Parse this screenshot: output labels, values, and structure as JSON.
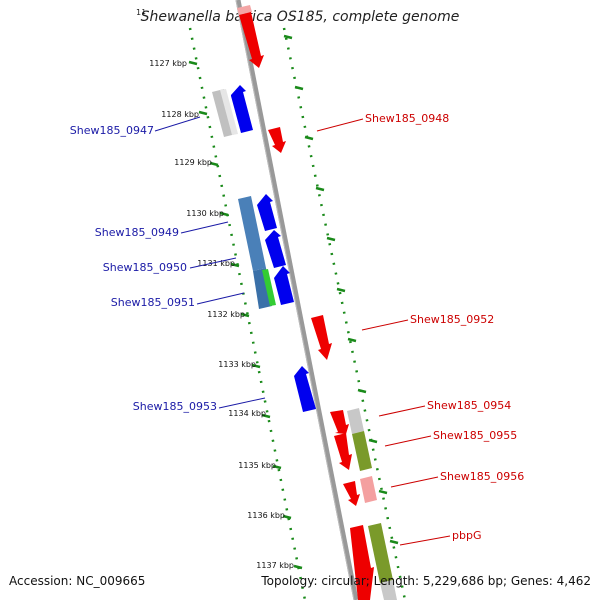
{
  "title": "Shewanella baltica OS185, complete genome",
  "title_prefix": "1",
  "footer": {
    "accession": "Accession: NC_009665",
    "summary": "Topology: circular; Length: 5,229,686 bp; Genes: 4,462"
  },
  "ticks": [
    "1127 kbp",
    "1128 kbp",
    "1129 kbp",
    "1130 kbp",
    "1131 kbp",
    "1132 kbp",
    "1133 kbp",
    "1134 kbp",
    "1135 kbp",
    "1136 kbp",
    "1137 kbp"
  ],
  "labels_left": [
    "Shew185_0947",
    "Shew185_0949",
    "Shew185_0950",
    "Shew185_0951",
    "Shew185_0953"
  ],
  "labels_right": [
    "Shew185_0948",
    "Shew185_0952",
    "Shew185_0954",
    "Shew185_0955",
    "Shew185_0956",
    "pbpG"
  ],
  "colors": {
    "forward_gene": "#0000ee",
    "reverse_gene": "#ee0000",
    "left_label": "#1a1aa6",
    "right_label": "#cc0000",
    "tick_dots": "#1a8a1a",
    "backbone": "#888888"
  }
}
